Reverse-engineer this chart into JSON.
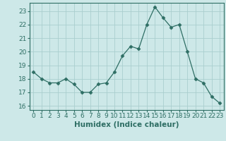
{
  "x": [
    0,
    1,
    2,
    3,
    4,
    5,
    6,
    7,
    8,
    9,
    10,
    11,
    12,
    13,
    14,
    15,
    16,
    17,
    18,
    19,
    20,
    21,
    22,
    23
  ],
  "y": [
    18.5,
    18.0,
    17.7,
    17.7,
    18.0,
    17.6,
    17.0,
    17.0,
    17.6,
    17.7,
    18.5,
    19.7,
    20.4,
    20.2,
    22.0,
    23.3,
    22.5,
    21.8,
    22.0,
    20.0,
    18.0,
    17.7,
    16.7,
    16.2
  ],
  "line_color": "#2e6e64",
  "marker": "D",
  "marker_size": 2.5,
  "bg_color": "#cde8e8",
  "grid_color": "#aacece",
  "xlabel": "Humidex (Indice chaleur)",
  "ylim": [
    15.7,
    23.6
  ],
  "yticks": [
    16,
    17,
    18,
    19,
    20,
    21,
    22,
    23
  ],
  "xticks": [
    0,
    1,
    2,
    3,
    4,
    5,
    6,
    7,
    8,
    9,
    10,
    11,
    12,
    13,
    14,
    15,
    16,
    17,
    18,
    19,
    20,
    21,
    22,
    23
  ],
  "tick_color": "#2e6e64",
  "label_color": "#2e6e64",
  "tick_fontsize": 6.5,
  "xlabel_fontsize": 7.5
}
